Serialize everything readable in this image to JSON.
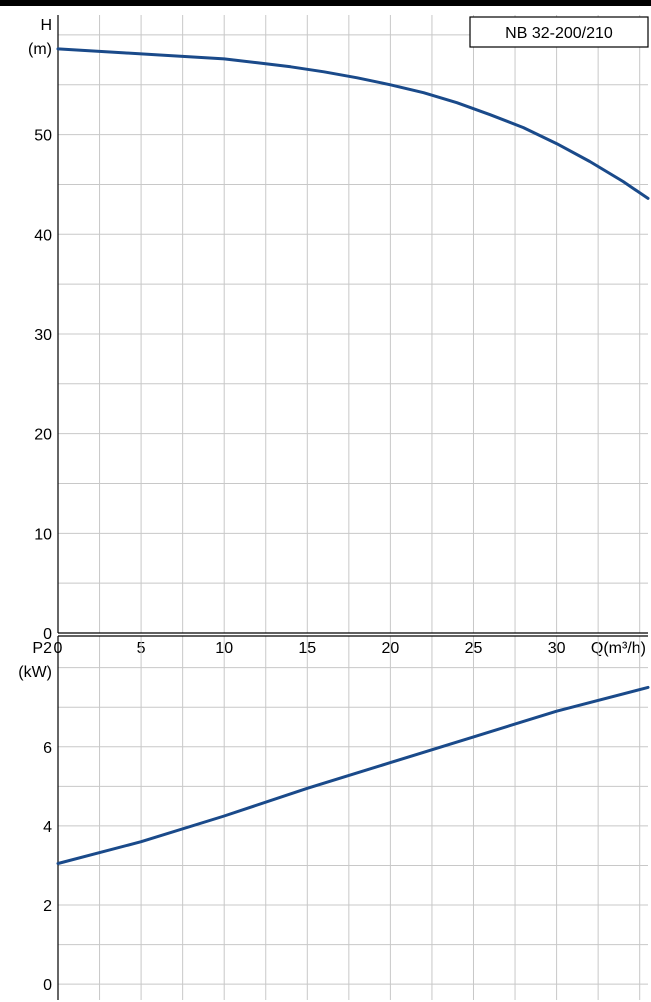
{
  "header_bar_color": "#000000",
  "curve_color": "#1a4a8a",
  "grid_color": "#c8c8c8",
  "chart_data": [
    {
      "type": "line",
      "title": "NB 32-200/210",
      "xlabel": "Q(m³/h)",
      "ylabel_line1": "H",
      "ylabel_line2": "(m)",
      "xlim": [
        0,
        35.5
      ],
      "ylim": [
        0,
        62
      ],
      "xticks": [
        0,
        5,
        10,
        15,
        20,
        25,
        30
      ],
      "yticks": [
        0,
        10,
        20,
        30,
        40,
        50
      ],
      "grid": true,
      "series": [
        {
          "x": [
            0,
            2,
            4,
            6,
            8,
            10,
            12,
            14,
            16,
            18,
            20,
            22,
            24,
            26,
            28,
            30,
            32,
            34,
            35.5
          ],
          "y": [
            58.6,
            58.4,
            58.2,
            58.0,
            57.8,
            57.6,
            57.2,
            56.8,
            56.3,
            55.7,
            55.0,
            54.2,
            53.2,
            52.0,
            50.7,
            49.1,
            47.3,
            45.3,
            43.6
          ]
        }
      ]
    },
    {
      "type": "line",
      "title": "",
      "xlabel": "",
      "ylabel_line1": "P2",
      "ylabel_line2": "(kW)",
      "xlim": [
        0,
        35.5
      ],
      "ylim": [
        -0.4,
        8.8
      ],
      "xticks": [
        0,
        5,
        10,
        15,
        20,
        25,
        30
      ],
      "yticks": [
        0,
        2,
        4,
        6
      ],
      "grid": true,
      "series": [
        {
          "x": [
            0,
            5,
            10,
            15,
            20,
            25,
            30,
            35.5
          ],
          "y": [
            3.05,
            3.6,
            4.25,
            4.95,
            5.6,
            6.25,
            6.9,
            7.5
          ]
        }
      ]
    }
  ]
}
